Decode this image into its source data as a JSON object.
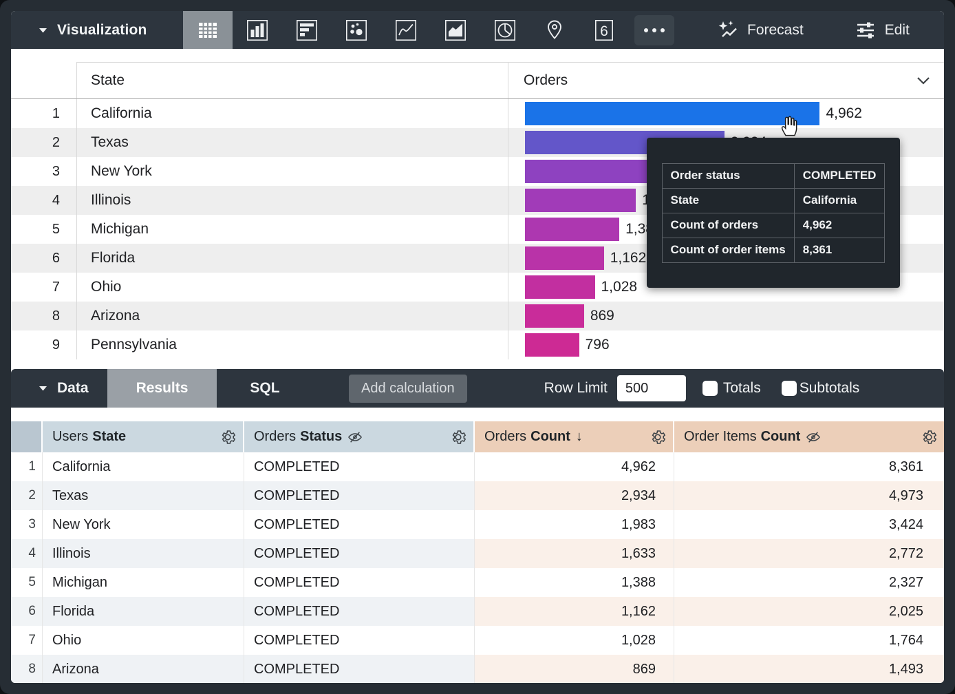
{
  "toolbar": {
    "visualization_label": "Visualization",
    "forecast_label": "Forecast",
    "edit_label": "Edit",
    "more_icon": "more-horizontal-icon",
    "icons": [
      "table",
      "column-chart",
      "bar-chart",
      "scatter",
      "line-chart",
      "area-chart",
      "pie-chart",
      "map-pin",
      "single-value",
      "more"
    ],
    "selected_icon": "table",
    "single_value_glyph": "6"
  },
  "viz_table": {
    "columns": {
      "state": "State",
      "orders": "Orders"
    },
    "rows": [
      {
        "num": "1",
        "state": "California",
        "value": "4,962"
      },
      {
        "num": "2",
        "state": "Texas",
        "value": "2,934"
      },
      {
        "num": "3",
        "state": "New York",
        "value": "1,983"
      },
      {
        "num": "4",
        "state": "Illinois",
        "value": "1,633"
      },
      {
        "num": "5",
        "state": "Michigan",
        "value": "1,388"
      },
      {
        "num": "6",
        "state": "Florida",
        "value": "1,162"
      },
      {
        "num": "7",
        "state": "Ohio",
        "value": "1,028"
      },
      {
        "num": "8",
        "state": "Arizona",
        "value": "869"
      },
      {
        "num": "9",
        "state": "Pennsylvania",
        "value": "796"
      }
    ]
  },
  "chart_data": {
    "type": "bar",
    "orientation": "horizontal",
    "categories": [
      "California",
      "Texas",
      "New York",
      "Illinois",
      "Michigan",
      "Florida",
      "Ohio",
      "Arizona",
      "Pennsylvania"
    ],
    "values": [
      4962,
      2934,
      1983,
      1633,
      1388,
      1162,
      1028,
      869,
      796
    ],
    "value_labels": [
      "4,962",
      "2,934",
      "1,983",
      "1,633",
      "1,388",
      "1,162",
      "1,028",
      "869",
      "796"
    ],
    "max_value": 4962,
    "xlabel": "Orders",
    "ylabel": "State",
    "bar_colors": [
      "#1a73e8",
      "#6356c9",
      "#8e42c0",
      "#a13bb8",
      "#ad37b0",
      "#b933a8",
      "#c22fa0",
      "#c92c9a",
      "#cd2a94"
    ]
  },
  "tooltip": {
    "rows": [
      {
        "label": "Order status",
        "value": "COMPLETED"
      },
      {
        "label": "State",
        "value": "California"
      },
      {
        "label": "Count of orders",
        "value": "4,962"
      },
      {
        "label": "Count of order items",
        "value": "8,361"
      }
    ]
  },
  "data_bar": {
    "data_label": "Data",
    "results_tab": "Results",
    "sql_tab": "SQL",
    "add_calculation": "Add calculation",
    "row_limit_label": "Row Limit",
    "row_limit_value": "500",
    "totals_label": "Totals",
    "subtotals_label": "Subtotals",
    "totals_checked": false,
    "subtotals_checked": false
  },
  "results_table": {
    "headers": [
      {
        "prefix": "Users",
        "bold": "State"
      },
      {
        "prefix": "Orders",
        "bold": "Status"
      },
      {
        "prefix": "Orders",
        "bold": "Count",
        "sort": "desc"
      },
      {
        "prefix": "Order Items",
        "bold": "Count"
      }
    ],
    "sort_arrow": "↓",
    "rows": [
      {
        "num": "1",
        "state": "California",
        "status": "COMPLETED",
        "orders_count": "4,962",
        "order_items_count": "8,361"
      },
      {
        "num": "2",
        "state": "Texas",
        "status": "COMPLETED",
        "orders_count": "2,934",
        "order_items_count": "4,973"
      },
      {
        "num": "3",
        "state": "New York",
        "status": "COMPLETED",
        "orders_count": "1,983",
        "order_items_count": "3,424"
      },
      {
        "num": "4",
        "state": "Illinois",
        "status": "COMPLETED",
        "orders_count": "1,633",
        "order_items_count": "2,772"
      },
      {
        "num": "5",
        "state": "Michigan",
        "status": "COMPLETED",
        "orders_count": "1,388",
        "order_items_count": "2,327"
      },
      {
        "num": "6",
        "state": "Florida",
        "status": "COMPLETED",
        "orders_count": "1,162",
        "order_items_count": "2,025"
      },
      {
        "num": "7",
        "state": "Ohio",
        "status": "COMPLETED",
        "orders_count": "1,028",
        "order_items_count": "1,764"
      },
      {
        "num": "8",
        "state": "Arizona",
        "status": "COMPLETED",
        "orders_count": "869",
        "order_items_count": "1,493"
      }
    ]
  },
  "colors": {
    "frame": "#262d34",
    "toolbar_bg": "#2d353e",
    "selected_icon_bg": "#8a9197",
    "results_tab_bg": "#9aa0a6",
    "dimension_header_bg": "#cbd8e0",
    "measure_header_bg": "#eccfb9",
    "tooltip_bg": "#20262c",
    "bar_blue": "#1a73e8",
    "bar_magenta": "#cd2a94"
  }
}
